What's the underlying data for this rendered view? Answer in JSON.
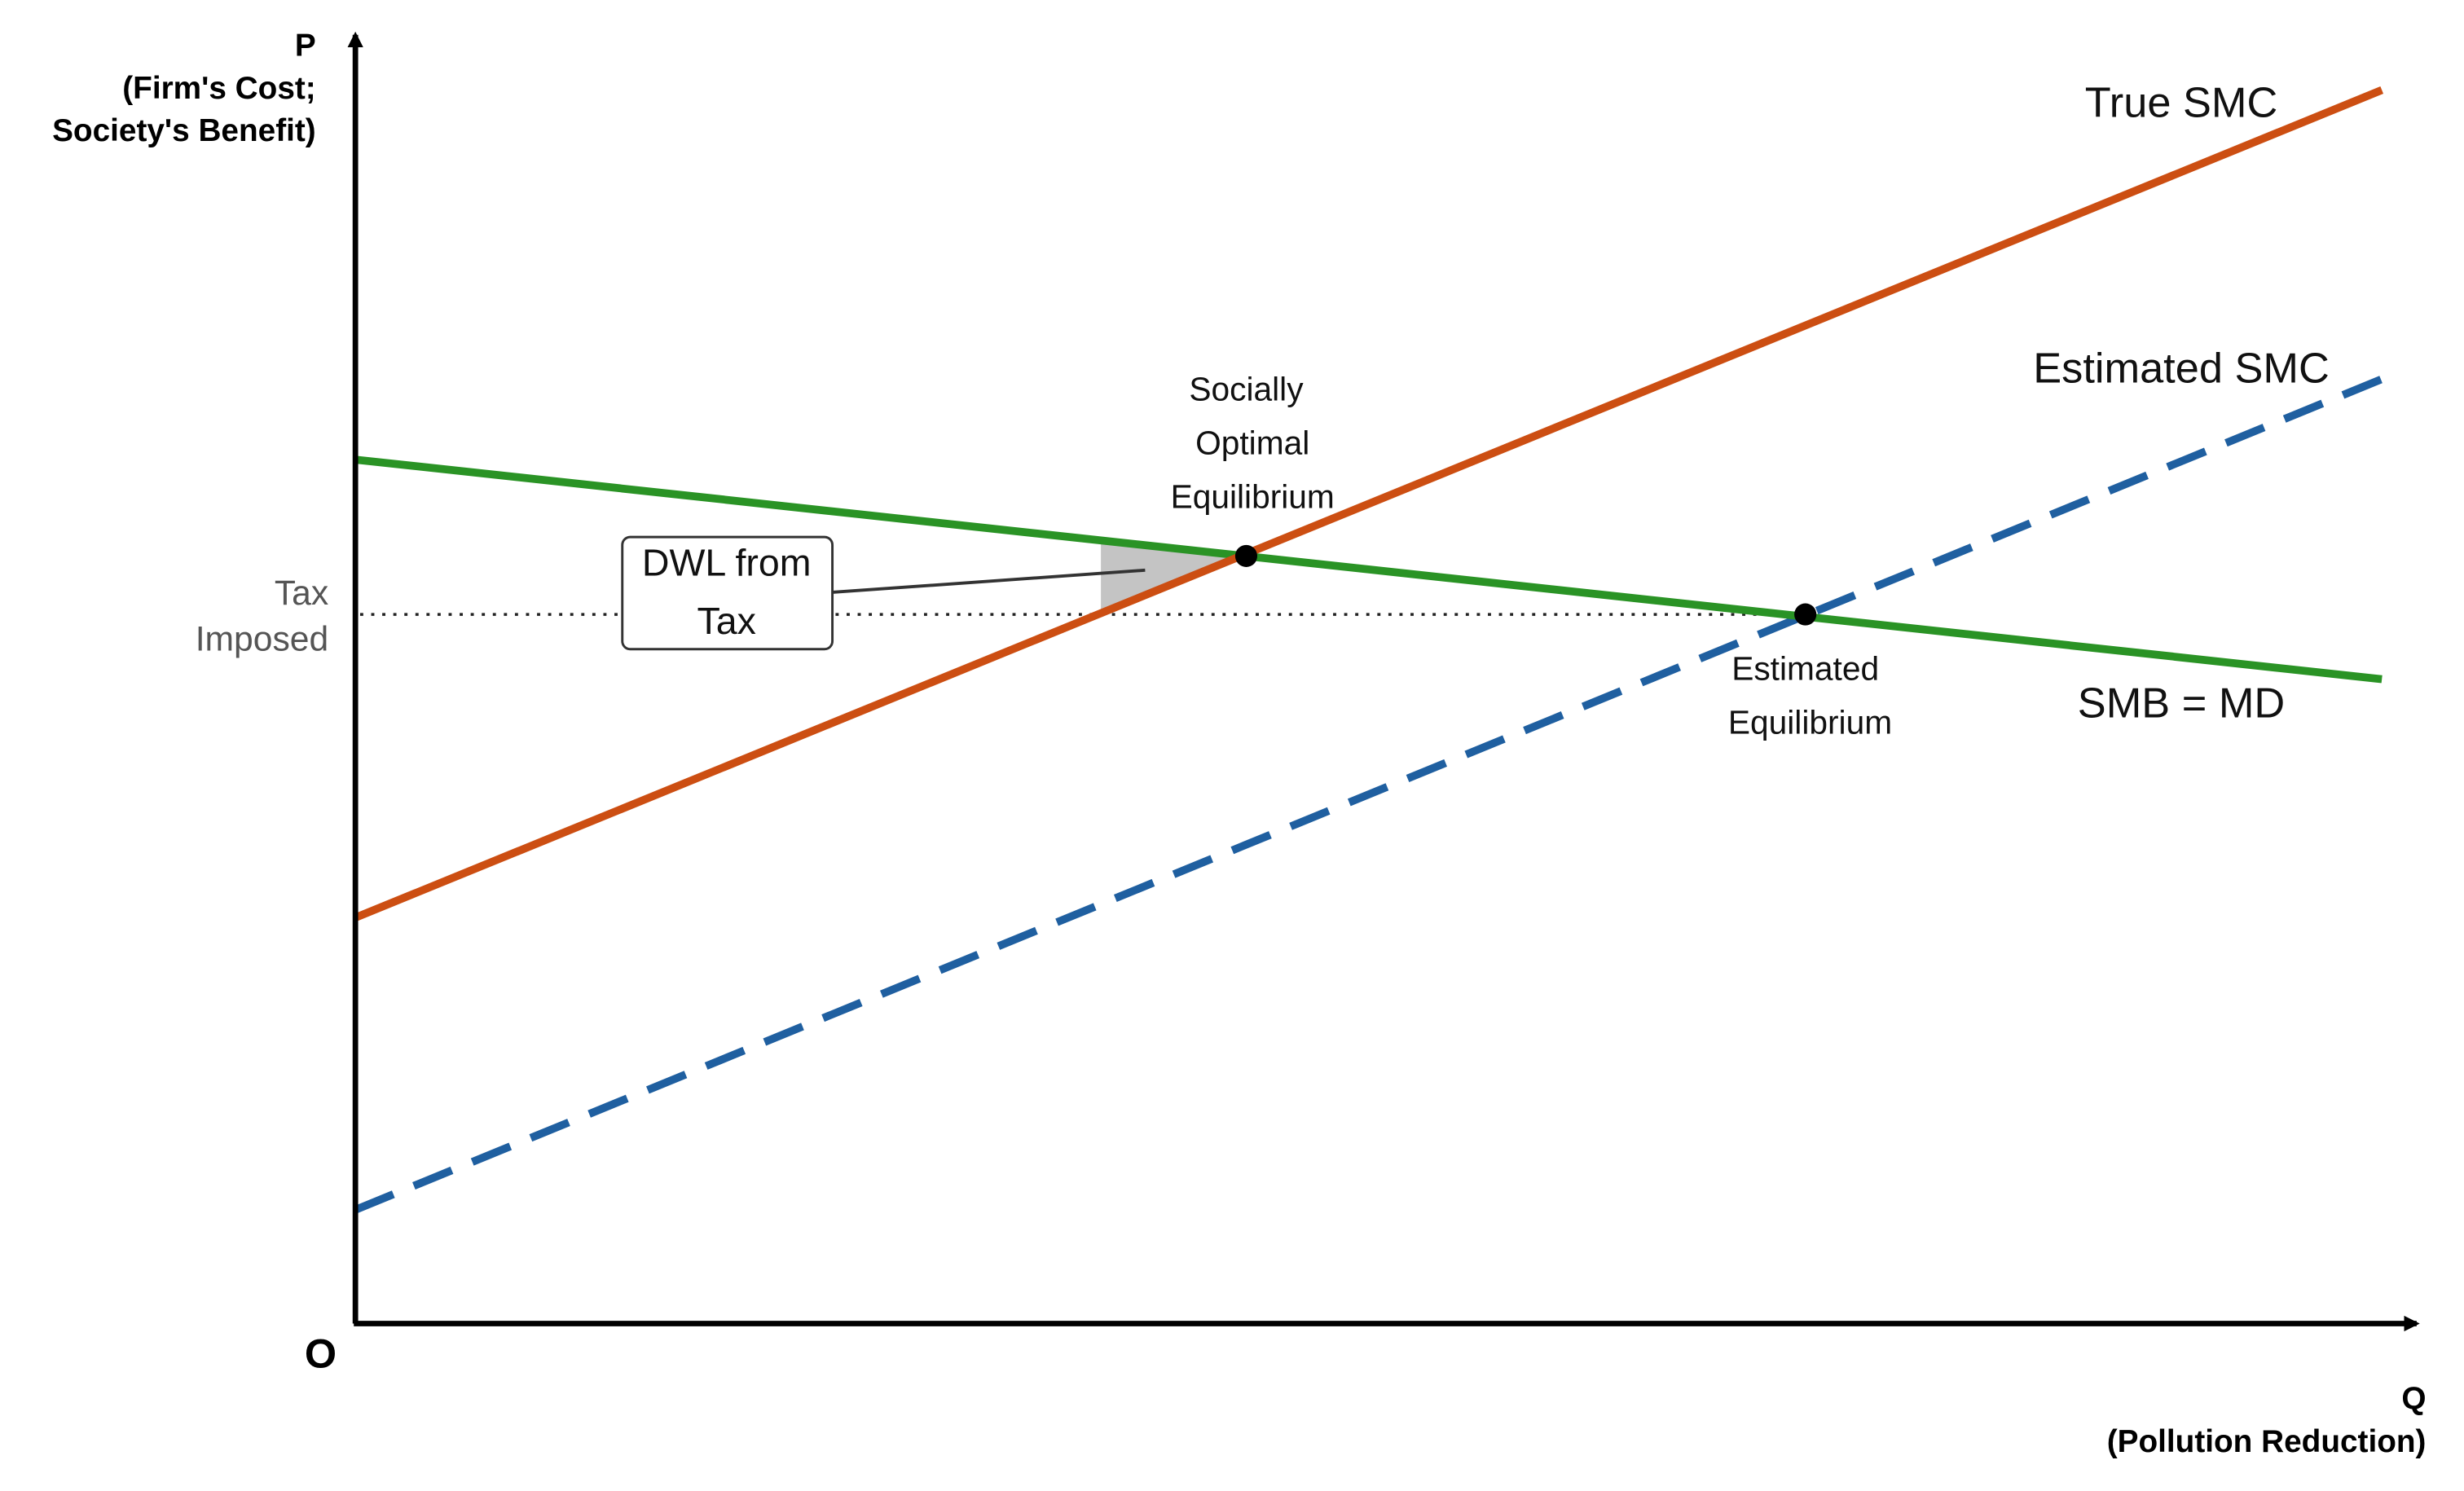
{
  "axes": {
    "y_label": [
      "P",
      "(Firm's Cost;",
      "Society's Benefit)"
    ],
    "origin": "O",
    "x_label": [
      "Q",
      "(Pollution Reduction)"
    ]
  },
  "tax_label": [
    "Tax",
    "Imposed"
  ],
  "dwl_box": [
    "DWL from",
    "Tax"
  ],
  "social_optimum": [
    "Socially",
    "Optimal",
    "Equilibrium"
  ],
  "estimated_equilibrium": [
    "Estimated",
    "Equilibrium"
  ],
  "curves": {
    "true_smc": "True SMC",
    "estimated_smc": "Estimated SMC",
    "smb": "SMB = MD"
  }
}
